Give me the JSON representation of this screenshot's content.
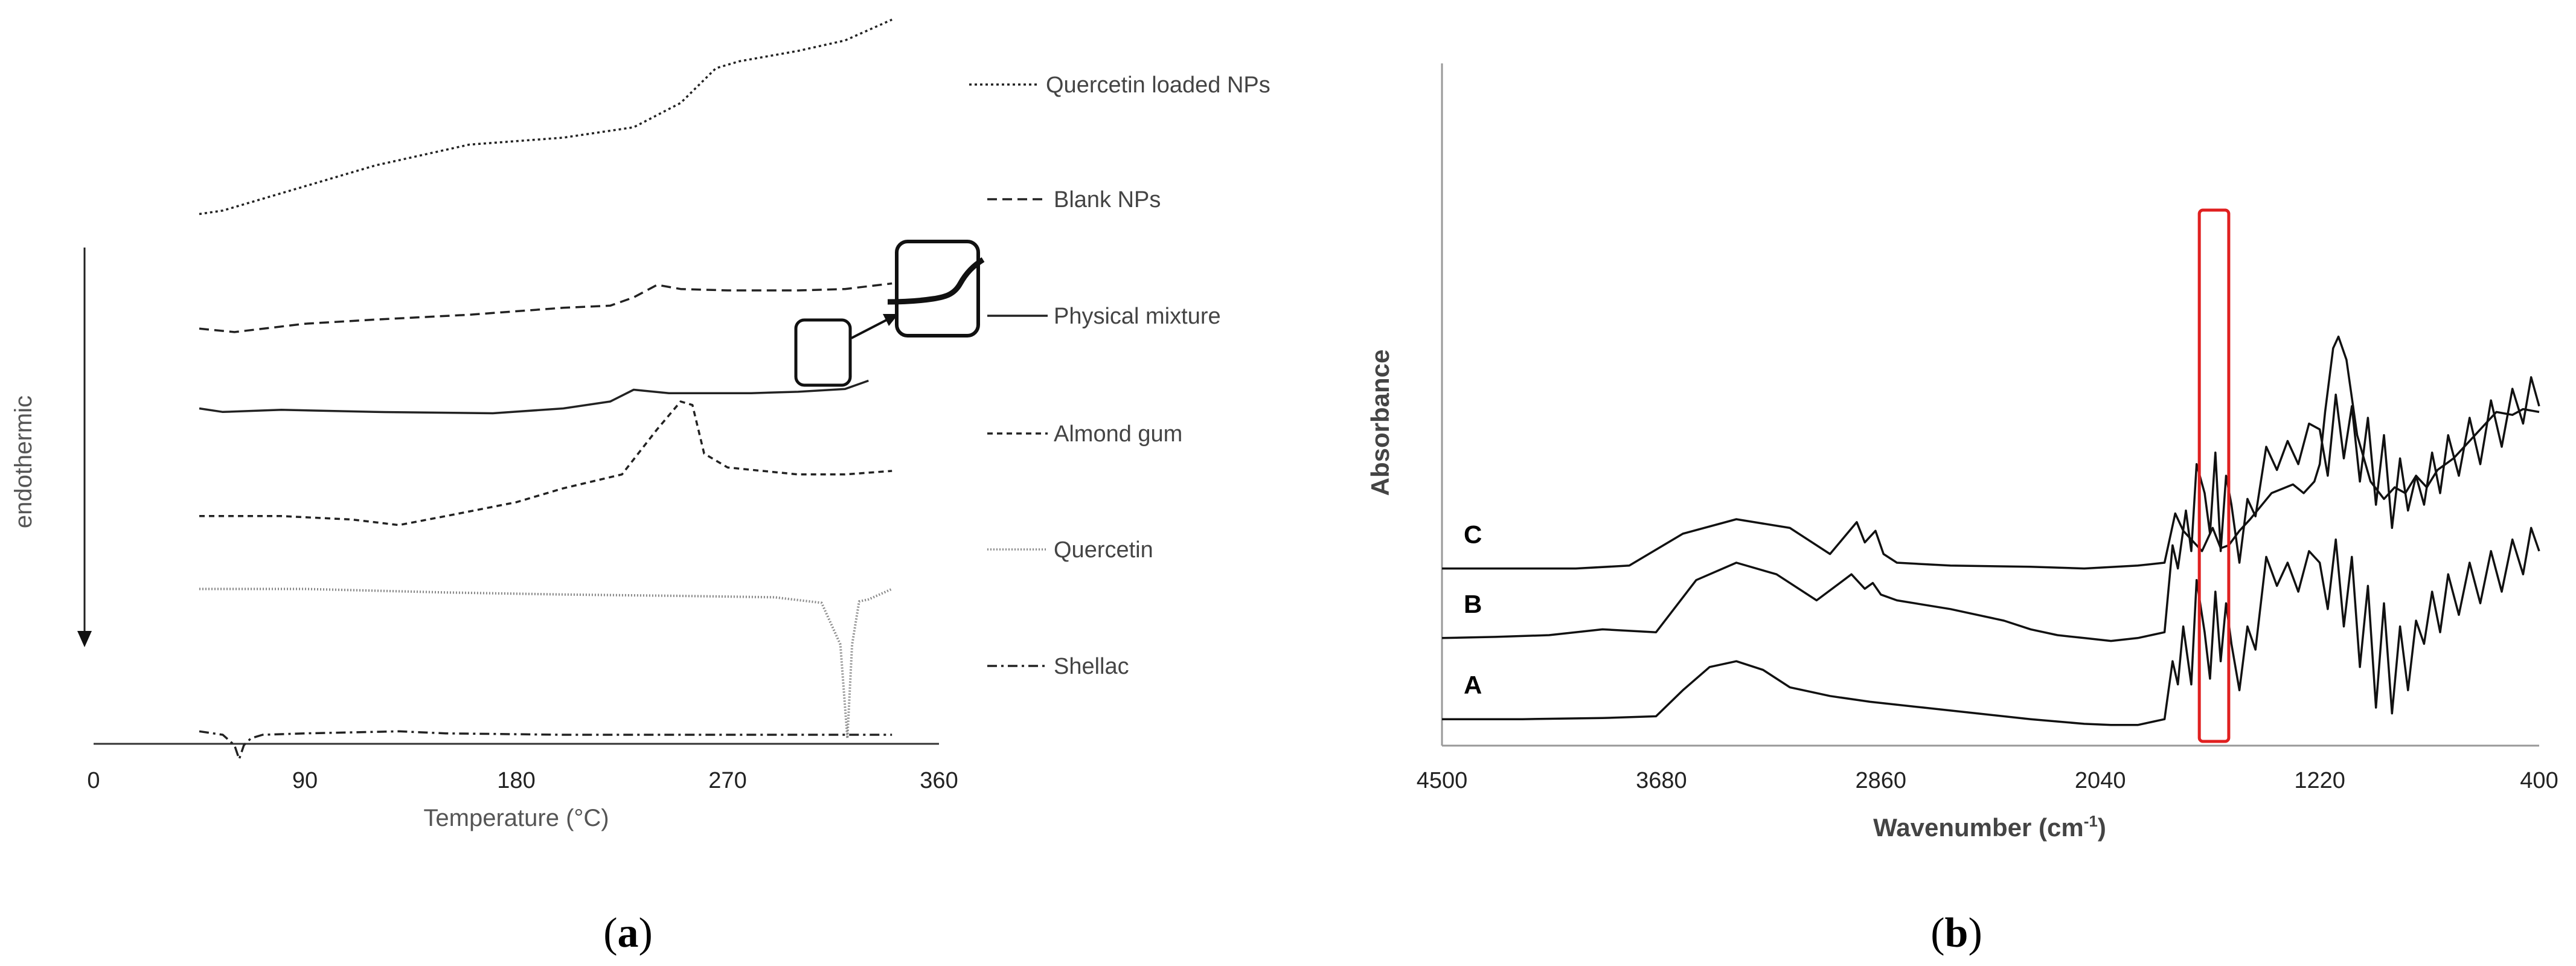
{
  "chart_data": [
    {
      "panel": "a",
      "caption_letter": "a",
      "type": "line",
      "title": "",
      "xlabel": "Temperature (°C)",
      "ylabel": "endothermic",
      "xlim": [
        0,
        360
      ],
      "xticks": [
        "0",
        "90",
        "180",
        "270",
        "360"
      ],
      "series": [
        {
          "name": "Quercetin loaded NPs",
          "style": "dotted",
          "x": [
            45,
            55,
            80,
            120,
            160,
            200,
            230,
            230,
            250,
            265,
            275,
            300,
            320,
            340
          ],
          "y": [
            8.7,
            8.75,
            9.0,
            9.4,
            9.7,
            9.8,
            9.95,
            9.95,
            10.3,
            10.8,
            10.9,
            11.05,
            11.2,
            11.5
          ]
        },
        {
          "name": "Blank NPs",
          "style": "dashed",
          "x": [
            45,
            60,
            90,
            120,
            160,
            200,
            220,
            230,
            240,
            250,
            270,
            300,
            320,
            340
          ],
          "y": [
            7.05,
            7.0,
            7.12,
            7.18,
            7.25,
            7.35,
            7.38,
            7.5,
            7.68,
            7.62,
            7.6,
            7.6,
            7.62,
            7.7
          ]
        },
        {
          "name": "Physical mixture",
          "style": "solid",
          "x": [
            45,
            55,
            80,
            120,
            170,
            200,
            220,
            230,
            245,
            260,
            280,
            300,
            320,
            330
          ],
          "y": [
            5.9,
            5.85,
            5.88,
            5.85,
            5.83,
            5.9,
            6.0,
            6.17,
            6.12,
            6.12,
            6.12,
            6.14,
            6.18,
            6.3
          ]
        },
        {
          "name": "Almond gum",
          "style": "short-dashed",
          "x": [
            45,
            80,
            110,
            130,
            150,
            180,
            200,
            225,
            240,
            250,
            255,
            260,
            270,
            300,
            320,
            340
          ],
          "y": [
            4.35,
            4.35,
            4.3,
            4.22,
            4.35,
            4.55,
            4.75,
            4.95,
            5.6,
            6.0,
            5.95,
            5.25,
            5.05,
            4.95,
            4.95,
            5.0
          ]
        },
        {
          "name": "Quercetin",
          "style": "fine-dotted",
          "x": [
            45,
            90,
            150,
            200,
            250,
            290,
            310,
            318,
            321,
            323,
            326,
            330,
            340
          ],
          "y": [
            3.3,
            3.3,
            3.25,
            3.22,
            3.2,
            3.18,
            3.1,
            2.5,
            1.15,
            2.5,
            3.12,
            3.15,
            3.3
          ]
        },
        {
          "name": "Shellac",
          "style": "dash-dot",
          "x": [
            45,
            55,
            60,
            62,
            64,
            67,
            72,
            90,
            130,
            150,
            200,
            260,
            320,
            340
          ],
          "y": [
            1.25,
            1.2,
            1.05,
            0.85,
            1.05,
            1.15,
            1.2,
            1.22,
            1.25,
            1.22,
            1.2,
            1.2,
            1.2,
            1.2
          ]
        }
      ]
    },
    {
      "panel": "b",
      "caption_letter": "b",
      "type": "line",
      "title": "",
      "xlabel": "Wavenumber (cm",
      "xlabel_sup": "-1",
      "xlabel_close": ")",
      "ylabel": "Absorbance",
      "xlim": [
        4500,
        400
      ],
      "xticks": [
        "4500",
        "3680",
        "2860",
        "2040",
        "1220",
        "400"
      ],
      "series": [
        {
          "name": "C",
          "x": [
            4500,
            4000,
            3800,
            3600,
            3400,
            3200,
            3050,
            2950,
            2920,
            2880,
            2850,
            2800,
            2600,
            2300,
            2100,
            1900,
            1800,
            1760,
            1730,
            1700,
            1660,
            1620,
            1590,
            1560,
            1520,
            1480,
            1400,
            1320,
            1280,
            1240,
            1220,
            1200,
            1170,
            1150,
            1120,
            1080,
            1030,
            980,
            940,
            900,
            860,
            820,
            780,
            720,
            660,
            600,
            560,
            500,
            460,
            400
          ],
          "y": [
            2.9,
            2.9,
            2.95,
            3.5,
            3.75,
            3.6,
            3.15,
            3.7,
            3.35,
            3.55,
            3.15,
            3.0,
            2.95,
            2.93,
            2.9,
            2.95,
            3.0,
            3.85,
            3.55,
            3.4,
            3.2,
            3.6,
            3.25,
            3.3,
            3.55,
            3.75,
            4.2,
            4.35,
            4.2,
            4.4,
            4.7,
            5.6,
            6.7,
            6.9,
            6.5,
            5.2,
            4.4,
            4.1,
            4.3,
            4.2,
            4.5,
            4.3,
            4.6,
            4.8,
            5.1,
            5.4,
            5.6,
            5.55,
            5.65,
            5.6
          ]
        },
        {
          "name": "B",
          "x": [
            4500,
            4300,
            4100,
            3900,
            3700,
            3550,
            3400,
            3250,
            3100,
            2970,
            2920,
            2890,
            2860,
            2800,
            2600,
            2400,
            2300,
            2200,
            2100,
            2000,
            1900,
            1850,
            1800,
            1770,
            1750,
            1720,
            1700,
            1680,
            1650,
            1630,
            1610,
            1590,
            1570,
            1550,
            1520,
            1490,
            1460,
            1420,
            1380,
            1340,
            1300,
            1260,
            1220,
            1190,
            1160,
            1130,
            1100,
            1070,
            1040,
            1010,
            980,
            950,
            920,
            890,
            860,
            830,
            800,
            770,
            740,
            700,
            660,
            620,
            580,
            540,
            500,
            460,
            430,
            400
          ],
          "y": [
            1.7,
            1.72,
            1.75,
            1.85,
            1.8,
            2.7,
            3.0,
            2.8,
            2.35,
            2.8,
            2.55,
            2.65,
            2.45,
            2.35,
            2.2,
            2.0,
            1.85,
            1.75,
            1.7,
            1.65,
            1.7,
            1.75,
            1.8,
            3.3,
            2.9,
            3.9,
            3.2,
            4.7,
            4.2,
            3.5,
            4.9,
            3.2,
            4.5,
            4.0,
            3.0,
            4.1,
            3.8,
            5.0,
            4.6,
            5.1,
            4.7,
            5.4,
            5.3,
            4.5,
            5.9,
            4.8,
            5.7,
            4.4,
            5.5,
            4.0,
            5.2,
            3.6,
            4.8,
            3.9,
            4.5,
            4.0,
            4.9,
            4.2,
            5.2,
            4.5,
            5.5,
            4.7,
            5.8,
            5.0,
            6.0,
            5.4,
            6.2,
            5.7
          ]
        },
        {
          "name": "A",
          "x": [
            4500,
            4200,
            3900,
            3700,
            3600,
            3500,
            3400,
            3300,
            3200,
            3050,
            2900,
            2700,
            2500,
            2300,
            2100,
            2000,
            1900,
            1850,
            1800,
            1770,
            1750,
            1730,
            1700,
            1680,
            1650,
            1630,
            1610,
            1590,
            1570,
            1550,
            1520,
            1490,
            1460,
            1420,
            1380,
            1340,
            1300,
            1260,
            1220,
            1190,
            1160,
            1130,
            1100,
            1070,
            1040,
            1010,
            980,
            950,
            920,
            890,
            860,
            830,
            800,
            770,
            740,
            700,
            660,
            620,
            580,
            540,
            500,
            460,
            430,
            400
          ],
          "y": [
            0.3,
            0.3,
            0.32,
            0.35,
            0.8,
            1.2,
            1.3,
            1.15,
            0.85,
            0.7,
            0.6,
            0.5,
            0.4,
            0.3,
            0.22,
            0.2,
            0.2,
            0.25,
            0.3,
            1.3,
            0.9,
            1.9,
            0.9,
            2.7,
            1.8,
            1.0,
            2.5,
            1.3,
            2.3,
            1.6,
            0.8,
            1.9,
            1.5,
            3.1,
            2.6,
            3.0,
            2.5,
            3.2,
            3.0,
            2.2,
            3.4,
            1.9,
            3.1,
            1.2,
            2.6,
            0.5,
            2.3,
            0.4,
            1.9,
            0.8,
            2.0,
            1.6,
            2.5,
            1.8,
            2.8,
            2.1,
            3.0,
            2.3,
            3.2,
            2.5,
            3.4,
            2.8,
            3.6,
            3.2
          ]
        }
      ],
      "highlight": {
        "x_from": 1670,
        "x_to": 1560,
        "color": "#e02020"
      }
    }
  ]
}
